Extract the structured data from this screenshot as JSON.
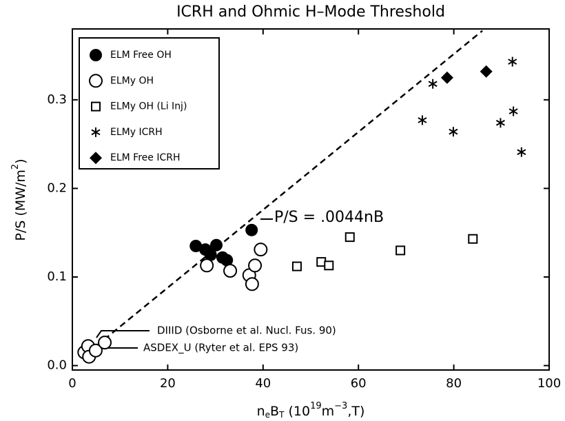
{
  "chart_data": {
    "type": "scatter",
    "title": "ICRH and Ohmic H–Mode Threshold",
    "x_label_parts": [
      "n",
      "e",
      "B",
      "T",
      " (10",
      "19",
      "m",
      "−3",
      ",T)"
    ],
    "y_label_parts": [
      "P/S (MW/m",
      "2",
      ")"
    ],
    "xlim": [
      0,
      100
    ],
    "ylim": [
      -0.005,
      0.38
    ],
    "xticks": [
      0,
      20,
      40,
      60,
      80,
      100
    ],
    "yticks": [
      {
        "value": 0,
        "label": "0.0"
      },
      0.1,
      0.2,
      0.3
    ],
    "series": [
      {
        "name": "ELM Free OH",
        "marker": "filled-circle",
        "color": "#000000",
        "x": [
          25.9,
          27.9,
          29.0,
          30.2,
          31.5,
          32.4,
          37.6
        ],
        "values": [
          0.135,
          0.131,
          0.125,
          0.136,
          0.122,
          0.119,
          0.153
        ]
      },
      {
        "name": "ELMy OH",
        "marker": "open-circle",
        "color": "#000000",
        "x": [
          28.2,
          33.1,
          37.1,
          37.7,
          38.3,
          39.5,
          2.5,
          3.3,
          3.5,
          4.9,
          6.8
        ],
        "values": [
          0.113,
          0.107,
          0.102,
          0.092,
          0.113,
          0.131,
          0.015,
          0.022,
          0.01,
          0.017,
          0.026
        ]
      },
      {
        "name": "ELMy OH (Li Inj)",
        "marker": "open-square",
        "color": "#000000",
        "x": [
          47.1,
          52.2,
          53.8,
          58.2,
          68.8,
          84.0
        ],
        "values": [
          0.112,
          0.117,
          0.113,
          0.145,
          0.13,
          0.143
        ]
      },
      {
        "name": "ELMy ICRH",
        "marker": "asterisk",
        "color": "#000000",
        "x": [
          75.6,
          73.4,
          79.9,
          92.3,
          89.8,
          92.5,
          94.2
        ],
        "values": [
          0.318,
          0.277,
          0.264,
          0.343,
          0.274,
          0.287,
          0.241
        ]
      },
      {
        "name": "ELM Free ICRH",
        "marker": "filled-diamond",
        "color": "#000000",
        "x": [
          78.6,
          86.8
        ],
        "values": [
          0.325,
          0.332
        ]
      }
    ],
    "fit_line": {
      "label": "P/S = .0044nB",
      "x": [
        5,
        86
      ],
      "values": [
        0.022,
        0.378
      ]
    },
    "annotations": [
      "DIIID (Osborne et al. Nucl. Fus. 90)",
      "ASDEX_U (Ryter et al. EPS 93)"
    ]
  }
}
